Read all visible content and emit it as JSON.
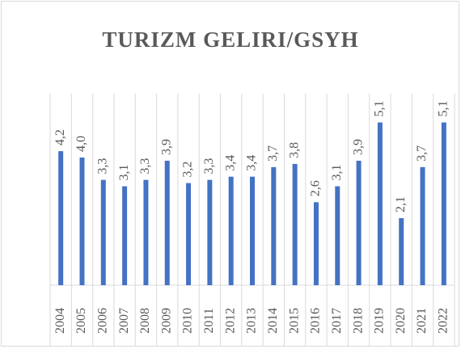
{
  "chart_data": {
    "type": "bar",
    "title": "TURIZM GELIRI/GSYH",
    "categories": [
      "2004",
      "2005",
      "2006",
      "2007",
      "2008",
      "2009",
      "2010",
      "2011",
      "2012",
      "2013",
      "2014",
      "2015",
      "2016",
      "2017",
      "2018",
      "2019",
      "2020",
      "2021",
      "2022"
    ],
    "values": [
      4.2,
      4.0,
      3.3,
      3.1,
      3.3,
      3.9,
      3.2,
      3.3,
      3.4,
      3.4,
      3.7,
      3.8,
      2.6,
      3.1,
      3.9,
      5.1,
      2.1,
      3.7,
      5.1
    ],
    "value_labels": [
      "4,2",
      "4,0",
      "3,3",
      "3,1",
      "3,3",
      "3,9",
      "3,2",
      "3,3",
      "3,4",
      "3,4",
      "3,7",
      "3,8",
      "2,6",
      "3,1",
      "3,9",
      "5,1",
      "2,1",
      "3,7",
      "5,1"
    ],
    "color": "#4472c4",
    "ylim": [
      0,
      6
    ]
  }
}
